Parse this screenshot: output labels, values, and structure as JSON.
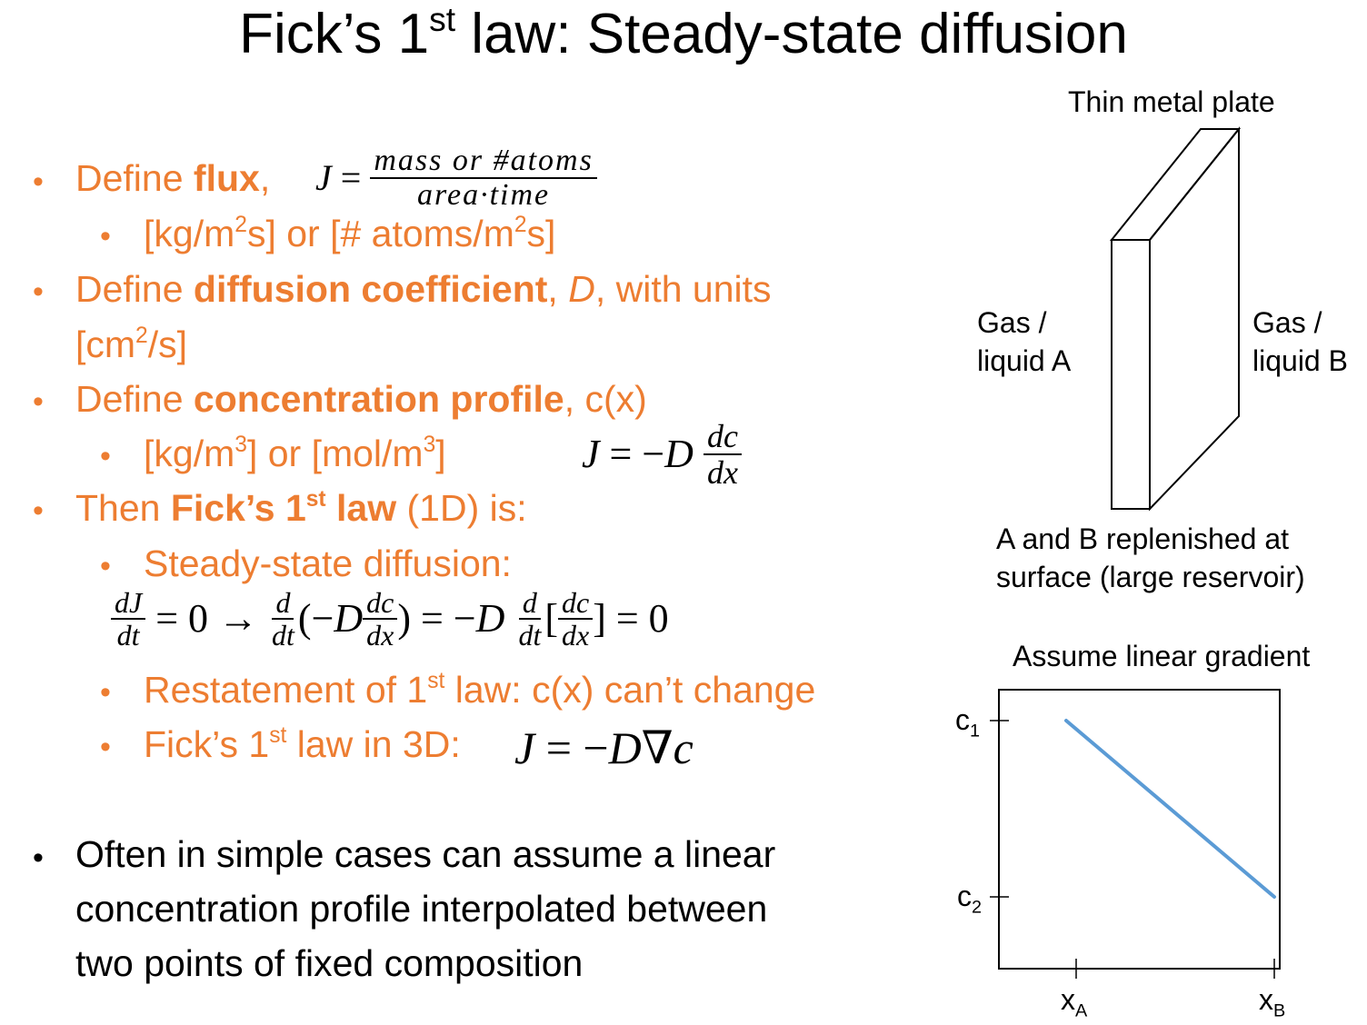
{
  "slide": {
    "title": "Fick’s 1st law: Steady-state diffusion"
  },
  "bullets": {
    "flux_def": "Define flux,",
    "flux_units": "[kg/m2s] or [# atoms/m2s]",
    "diffusion_coeff": "Define diffusion coefficient, D, with units [cm2/s]",
    "conc_profile": "Define concentration profile, c(x)",
    "conc_units": "[kg/m3] or [mol/m3]",
    "ficks_law_1d": "Then Fick’s 1st law (1D) is:",
    "steady_state": "Steady-state diffusion:",
    "restatement": "Restatement of 1st law: c(x) can’t change",
    "three_d": "Fick’s 1st law in 3D:",
    "linear_note": "Often in simple cases can assume a linear concentration profile interpolated between two points of fixed composition"
  },
  "equations": {
    "flux": "J = (mass or #atoms)/(area·time)",
    "ficks_first": "J = −D dc/dx",
    "steady_state": "dJ/dt = 0 → d/dt(−D dc/dx) = −D d/dt[dc/dx] = 0",
    "three_d": "J = −D∇c"
  },
  "plate_diagram": {
    "title": "Thin metal plate",
    "left_label_line1": "Gas /",
    "left_label_line2": "liquid A",
    "right_label_line1": "Gas /",
    "right_label_line2": "liquid B",
    "caption_line1": "A and B replenished at",
    "caption_line2": "surface (large reservoir)"
  },
  "chart_data": {
    "type": "line",
    "title": "Assume linear gradient",
    "xticks": [
      "xA",
      "xB"
    ],
    "yticks": [
      "c1",
      "c2"
    ],
    "series": [
      {
        "points": [
          [
            "xA",
            "c1"
          ],
          [
            "xB",
            "c2"
          ]
        ],
        "color": "#5B9BD5"
      }
    ],
    "grid": false
  },
  "colors": {
    "accent": "#ED7D31",
    "line": "#5B9BD5",
    "text": "#000000"
  }
}
